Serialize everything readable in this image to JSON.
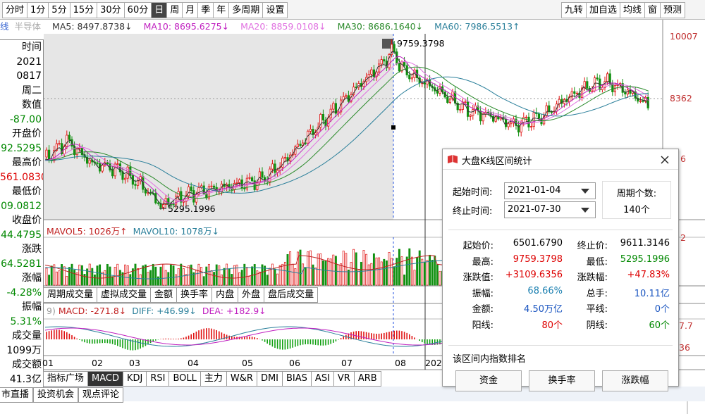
{
  "toolbar": {
    "periods": [
      "分时",
      "1分",
      "5分",
      "15分",
      "30分",
      "60分",
      "日",
      "周",
      "月",
      "季",
      "年",
      "多周期",
      "设置"
    ],
    "selected": "日",
    "tools": [
      "九转",
      "加自选",
      "均线",
      "窗",
      "预测"
    ]
  },
  "ma_legend": {
    "prefix": "线",
    "name": "半导体",
    "items": [
      {
        "label": "MA5: 8497.8738↓",
        "color": "#333333"
      },
      {
        "label": "MA10: 8695.6275↓",
        "color": "#c020c0"
      },
      {
        "label": "MA20: 8859.0108↓",
        "color": "#e070e0"
      },
      {
        "label": "MA30: 8686.1640↓",
        "color": "#2a8a2a"
      },
      {
        "label": "MA60: 7986.5513↑",
        "color": "#2a7f9a"
      }
    ]
  },
  "info_panel": [
    {
      "text": "时间",
      "color": "#000000"
    },
    {
      "text": "2021",
      "color": "#000000"
    },
    {
      "text": "0817",
      "color": "#000000"
    },
    {
      "text": "周二",
      "color": "#000000"
    },
    {
      "text": "数值",
      "color": "#000000"
    },
    {
      "text": "-87.00",
      "color": "#008800"
    },
    {
      "text": "开盘价",
      "color": "#000000"
    },
    {
      "text": "92.5295",
      "color": "#008800"
    },
    {
      "text": "最高价",
      "color": "#000000"
    },
    {
      "text": "561.0830",
      "color": "#dd0000"
    },
    {
      "text": "最低价",
      "color": "#000000"
    },
    {
      "text": "09.0812",
      "color": "#008800"
    },
    {
      "text": "收盘价",
      "color": "#000000"
    },
    {
      "text": "44.4795",
      "color": "#008800"
    },
    {
      "text": "涨跌",
      "color": "#000000"
    },
    {
      "text": "64.5281",
      "color": "#008800"
    },
    {
      "text": "涨幅",
      "color": "#000000"
    },
    {
      "text": "-4.28%",
      "color": "#008800"
    },
    {
      "text": "振幅",
      "color": "#000000"
    },
    {
      "text": "5.31%",
      "color": "#008800"
    },
    {
      "text": "成交量",
      "color": "#000000"
    },
    {
      "text": "1099万",
      "color": "#000000"
    },
    {
      "text": "成交额",
      "color": "#000000"
    },
    {
      "text": "41.3亿",
      "color": "#000000"
    }
  ],
  "right_axis": [
    "10007",
    "8362",
    "6",
    "2",
    "7.7",
    "36"
  ],
  "annotations": {
    "high": "9759.3798",
    "low": "5295.1996"
  },
  "volume_legend": {
    "mavol5": "MAVOL5: 1026万↑",
    "mavol10": "MAVOL10: 1078万↓"
  },
  "volume_tabs": [
    "周期成交量",
    "虚拟成交量",
    "金额",
    "换手率",
    "内盘",
    "外盘",
    "盘后成交量"
  ],
  "macd_legend": {
    "params": "9)",
    "macd": "MACD: -271.8↓",
    "diff": "DIFF: +46.99↓",
    "dea": "DEA: +182.9↓"
  },
  "x_labels": [
    "01",
    "02",
    "03",
    "04",
    "05",
    "06",
    "07",
    "08",
    "202"
  ],
  "indicator_tabs": [
    "指标广场",
    "MACD",
    "KDJ",
    "RSI",
    "BOLL",
    "主力",
    "W&R",
    "DMI",
    "BIAS",
    "ASI",
    "VR",
    "ARB"
  ],
  "indicator_selected": "MACD",
  "bottom_tabs": [
    "市直播",
    "投资机会",
    "观点评论"
  ],
  "dialog": {
    "title": "大盘K线区间统计",
    "start_label": "起始时间:",
    "start_value": "2021-01-04",
    "end_label": "终止时间:",
    "end_value": "2021-07-30",
    "period_label": "周期个数:",
    "period_value": "140个",
    "stats": [
      [
        {
          "label": "起始价:",
          "value": "6501.6790",
          "color": "#000000"
        },
        {
          "label": "终止价:",
          "value": "9611.3146",
          "color": "#000000"
        }
      ],
      [
        {
          "label": "最高:",
          "value": "9759.3798",
          "color": "#dd0000"
        },
        {
          "label": "最低:",
          "value": "5295.1996",
          "color": "#008800"
        }
      ],
      [
        {
          "label": "涨跌值:",
          "value": "+3109.6356",
          "color": "#dd0000"
        },
        {
          "label": "涨跌幅:",
          "value": "+47.83%",
          "color": "#dd0000"
        }
      ],
      [
        {
          "label": "振幅:",
          "value": "68.66%",
          "color": "#1a7fb0"
        },
        {
          "label": "总手:",
          "value": "10.11亿",
          "color": "#1a55c0"
        }
      ],
      [
        {
          "label": "金额:",
          "value": "4.50万亿",
          "color": "#1a55c0"
        },
        {
          "label": "平线:",
          "value": "0个",
          "color": "#1a55c0"
        }
      ],
      [
        {
          "label": "阳线:",
          "value": "80个",
          "color": "#dd0000"
        },
        {
          "label": "阴线:",
          "value": "60个",
          "color": "#008800"
        }
      ]
    ],
    "ranking_title": "该区间内指数排名",
    "buttons": [
      "资金",
      "换手率",
      "涨跌幅"
    ]
  }
}
